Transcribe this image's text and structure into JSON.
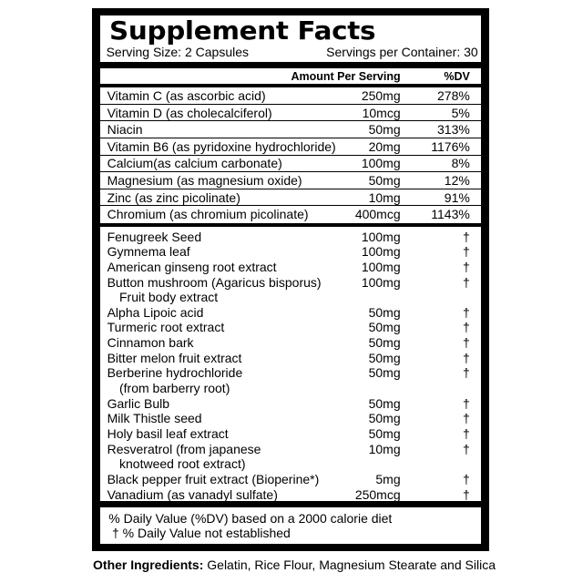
{
  "colors": {
    "ink": "#000000",
    "paper": "#ffffff"
  },
  "panel": {
    "title": "Supplement Facts",
    "serving_size": "Serving Size: 2 Capsules",
    "servings_per_container": "Servings per Container: 30",
    "header": {
      "amount": "Amount Per Serving",
      "dv": "%DV"
    },
    "vitamins": [
      {
        "name": "Vitamin C (as ascorbic acid)",
        "amount": "250mg",
        "dv": "278%"
      },
      {
        "name": "Vitamin D (as cholecalciferol)",
        "amount": "10mcg",
        "dv": "5%"
      },
      {
        "name": "Niacin",
        "amount": "50mg",
        "dv": "313%"
      },
      {
        "name": "Vitamin B6 (as pyridoxine hydrochloride)",
        "amount": "20mg",
        "dv": "1176%"
      },
      {
        "name": "Calcium(as calcium carbonate)",
        "amount": "100mg",
        "dv": "8%"
      },
      {
        "name": "Magnesium (as magnesium oxide)",
        "amount": "50mg",
        "dv": "12%"
      },
      {
        "name": "Zinc (as zinc picolinate)",
        "amount": "10mg",
        "dv": "91%"
      },
      {
        "name": "Chromium (as chromium picolinate)",
        "amount": "400mcg",
        "dv": "1143%"
      }
    ],
    "botanicals": [
      {
        "name": "Fenugreek Seed",
        "amount": "100mg",
        "dv": "†"
      },
      {
        "name": "Gymnema leaf",
        "amount": "100mg",
        "dv": "†"
      },
      {
        "name": "American ginseng root extract",
        "amount": "100mg",
        "dv": "†"
      },
      {
        "name": "Button mushroom (Agaricus bisporus)",
        "name2": "Fruit body extract",
        "amount": "100mg",
        "dv": "†"
      },
      {
        "name": "Alpha Lipoic acid",
        "amount": "50mg",
        "dv": "†"
      },
      {
        "name": "Turmeric root extract",
        "amount": "50mg",
        "dv": "†"
      },
      {
        "name": "Cinnamon bark",
        "amount": "50mg",
        "dv": "†"
      },
      {
        "name": "Bitter melon fruit extract",
        "amount": "50mg",
        "dv": "†"
      },
      {
        "name": "Berberine hydrochloride",
        "name2": "(from barberry root)",
        "amount": "50mg",
        "dv": "†"
      },
      {
        "name": "Garlic Bulb",
        "amount": "50mg",
        "dv": "†"
      },
      {
        "name": "Milk Thistle seed",
        "amount": "50mg",
        "dv": "†"
      },
      {
        "name": "Holy basil leaf extract",
        "amount": "50mg",
        "dv": "†"
      },
      {
        "name": "Resveratrol (from japanese",
        "name2": "knotweed root extract)",
        "amount": "10mg",
        "dv": "†"
      },
      {
        "name": "Black pepper fruit extract (Bioperine*)",
        "amount": "5mg",
        "dv": "†"
      },
      {
        "name": "Vanadium (as vanadyl sulfate)",
        "amount": "250mcg",
        "dv": "†"
      }
    ],
    "footnotes": {
      "line1": "% Daily Value (%DV) based on a 2000 calorie diet",
      "line2": "† % Daily Value not established"
    }
  },
  "other_ingredients": {
    "label": "Other Ingredients:",
    "items": " Gelatin, Rice Flour, Magnesium Stearate and Silica"
  }
}
